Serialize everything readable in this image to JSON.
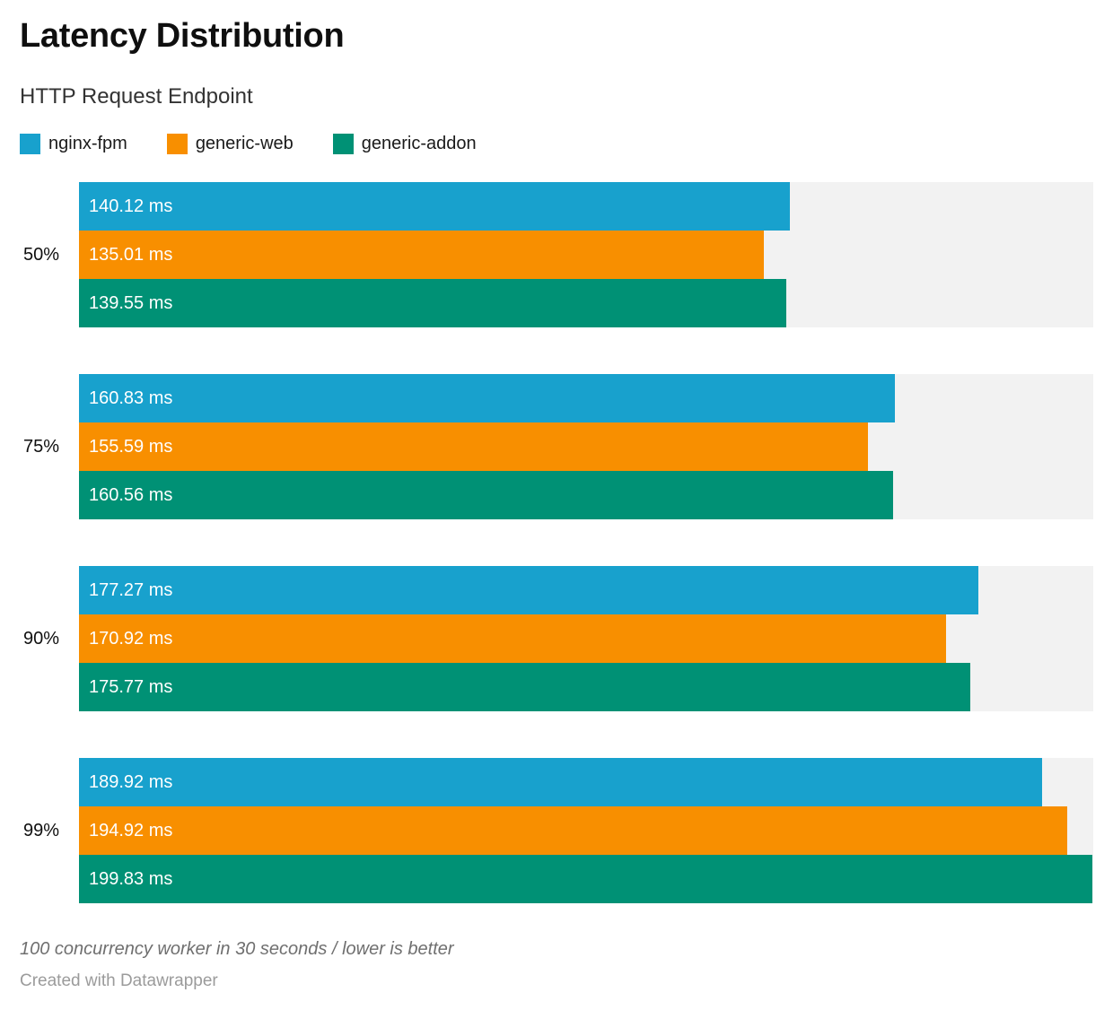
{
  "header": {
    "title": "Latency Distribution",
    "subtitle": "HTTP Request Endpoint"
  },
  "legend": {
    "position": "top",
    "items": [
      {
        "label": "nginx-fpm",
        "color": "#18a1cd"
      },
      {
        "label": "generic-web",
        "color": "#f88f00"
      },
      {
        "label": "generic-addon",
        "color": "#009175"
      }
    ]
  },
  "chart_data": {
    "type": "bar",
    "orientation": "horizontal",
    "title": "Latency Distribution",
    "subtitle": "HTTP Request Endpoint",
    "xlabel": "",
    "ylabel": "",
    "categories": [
      "50%",
      "75%",
      "90%",
      "99%"
    ],
    "series": [
      {
        "name": "nginx-fpm",
        "color": "#18a1cd",
        "values": [
          140.12,
          160.83,
          177.27,
          189.92
        ]
      },
      {
        "name": "generic-web",
        "color": "#f88f00",
        "values": [
          135.01,
          155.59,
          170.92,
          194.92
        ]
      },
      {
        "name": "generic-addon",
        "color": "#009175",
        "values": [
          139.55,
          160.56,
          175.77,
          199.83
        ]
      }
    ],
    "value_suffix": " ms",
    "value_decimals": 2,
    "value_labels": "inside-start",
    "xlim": [
      0,
      200
    ],
    "grid": false,
    "track_color": "#f2f2f2",
    "legend_position": "top"
  },
  "footer": {
    "note": "100 concurrency worker in 30 seconds / lower is better",
    "attribution": "Created with Datawrapper"
  }
}
